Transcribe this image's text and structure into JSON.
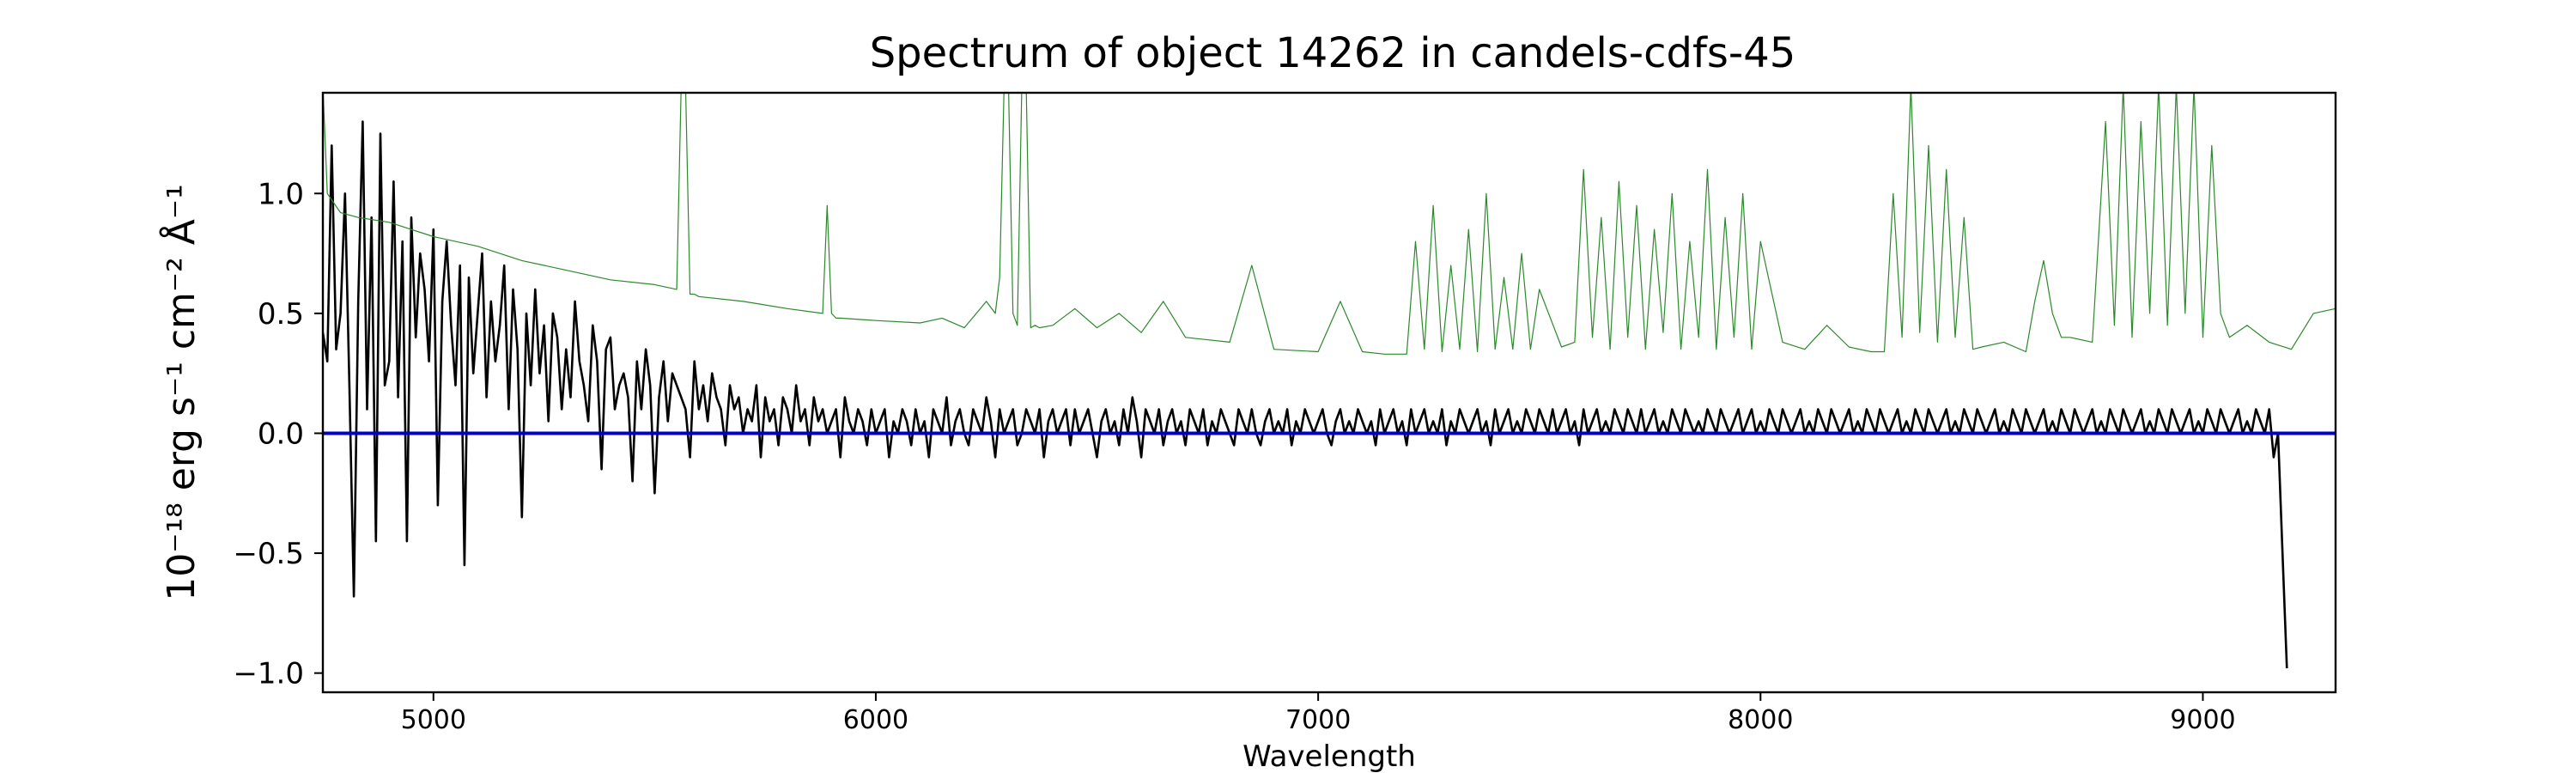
{
  "chart_data": {
    "type": "line",
    "title": "Spectrum of object 14262 in candels-cdfs-45",
    "xlabel": "Wavelength",
    "ylabel": "10⁻¹⁸ erg s⁻¹ cm⁻² Å⁻¹",
    "xlim": [
      4750,
      9300
    ],
    "ylim": [
      -1.08,
      1.42
    ],
    "x_ticks": [
      5000,
      6000,
      7000,
      8000,
      9000
    ],
    "x_tick_labels": [
      "5000",
      "6000",
      "7000",
      "8000",
      "9000"
    ],
    "y_ticks": [
      -1.0,
      -0.5,
      0.0,
      0.5,
      1.0
    ],
    "y_tick_labels": [
      "−1.0",
      "−0.5",
      "0.0",
      "0.5",
      "1.0"
    ],
    "grid": false,
    "legend": "none",
    "series": [
      {
        "role": "flux",
        "color": "#000000",
        "x_start": 4750,
        "x_step": 10,
        "values": [
          0.42,
          0.3,
          1.2,
          0.35,
          0.5,
          1.0,
          0.2,
          -0.68,
          0.55,
          1.3,
          0.1,
          0.9,
          -0.45,
          1.25,
          0.2,
          0.3,
          1.05,
          0.15,
          0.8,
          -0.45,
          0.9,
          0.4,
          0.75,
          0.6,
          0.3,
          0.85,
          -0.3,
          0.55,
          0.8,
          0.45,
          0.2,
          0.7,
          -0.55,
          0.65,
          0.25,
          0.5,
          0.75,
          0.15,
          0.55,
          0.3,
          0.45,
          0.7,
          0.1,
          0.6,
          0.35,
          -0.35,
          0.5,
          0.2,
          0.6,
          0.25,
          0.45,
          0.05,
          0.5,
          0.4,
          0.1,
          0.35,
          0.15,
          0.55,
          0.3,
          0.2,
          0.05,
          0.45,
          0.3,
          -0.15,
          0.35,
          0.4,
          0.1,
          0.2,
          0.25,
          0.15,
          -0.2,
          0.3,
          0.1,
          0.35,
          0.2,
          -0.25,
          0.15,
          0.3,
          0.05,
          0.25,
          0.2,
          0.15,
          0.1,
          -0.1,
          0.3,
          0.1,
          0.2,
          0.05,
          0.25,
          0.15,
          0.1,
          -0.05,
          0.2,
          0.1,
          0.15,
          0.0,
          0.1,
          0.05,
          0.2,
          -0.1,
          0.15,
          0.05,
          0.1,
          -0.05,
          0.15,
          0.1,
          0.0,
          0.2,
          0.05,
          0.1,
          -0.05,
          0.15,
          0.05,
          0.1,
          0.0,
          0.05,
          0.1,
          -0.1,
          0.15,
          0.05,
          0.0,
          0.1,
          0.05,
          -0.05,
          0.1,
          0.0,
          0.05,
          0.1,
          -0.1,
          0.05,
          0.0,
          0.1,
          0.05,
          -0.05,
          0.1,
          0.0,
          0.05,
          -0.1,
          0.1,
          0.05,
          0.0,
          0.15,
          -0.05,
          0.05,
          0.1,
          0.0,
          -0.05,
          0.1,
          0.05,
          0.0,
          0.15,
          0.05,
          -0.1,
          0.1,
          0.0,
          0.05,
          0.1,
          -0.05,
          0.0,
          0.1,
          0.05,
          0.0,
          0.1,
          -0.1,
          0.05,
          0.1,
          0.0,
          0.05,
          0.1,
          -0.05,
          0.1,
          0.0,
          0.05,
          0.1,
          0.0,
          -0.1,
          0.05,
          0.1,
          0.0,
          0.05,
          -0.05,
          0.1,
          0.0,
          0.15,
          0.05,
          -0.1,
          0.1,
          0.05,
          0.0,
          0.1,
          -0.05,
          0.05,
          0.1,
          0.0,
          0.05,
          -0.05,
          0.1,
          0.05,
          0.0,
          0.1,
          -0.05,
          0.05,
          0.0,
          0.1,
          0.05,
          0.0,
          -0.05,
          0.1,
          0.05,
          0.0,
          0.1,
          0.0,
          -0.05,
          0.05,
          0.1,
          0.0,
          0.05,
          0.0,
          0.1,
          -0.05,
          0.05,
          0.0,
          0.1,
          0.05,
          0.0,
          0.05,
          0.1,
          0.0,
          -0.05,
          0.05,
          0.1,
          0.0,
          0.05,
          0.0,
          0.1,
          0.05,
          0.0,
          0.05,
          -0.05,
          0.1,
          0.0,
          0.05,
          0.1,
          0.0,
          0.05,
          -0.05,
          0.1,
          0.0,
          0.05,
          0.1,
          0.0,
          0.05,
          0.0,
          0.1,
          -0.05,
          0.05,
          0.0,
          0.1,
          0.05,
          0.0,
          0.05,
          0.1,
          0.0,
          0.05,
          -0.05,
          0.1,
          0.0,
          0.05,
          0.1,
          0.0,
          0.05,
          0.0,
          0.1,
          0.05,
          0.0,
          0.1,
          0.05,
          0.0,
          0.1,
          0.0,
          0.05,
          0.1,
          0.0,
          0.05,
          -0.05,
          0.1,
          0.0,
          0.05,
          0.1,
          0.0,
          0.05,
          0.0,
          0.1,
          0.05,
          0.0,
          0.1,
          0.05,
          0.0,
          0.1,
          0.0,
          0.05,
          0.1,
          0.0,
          0.05,
          0.0,
          0.1,
          0.05,
          0.0,
          0.1,
          0.05,
          0.0,
          0.05,
          0.0,
          0.1,
          0.05,
          0.0,
          0.1,
          0.05,
          0.0,
          0.05,
          0.1,
          0.0,
          0.05,
          0.1,
          0.0,
          0.05,
          0.0,
          0.1,
          0.05,
          0.0,
          0.1,
          0.05,
          0.0,
          0.05,
          0.1,
          0.0,
          0.05,
          0.0,
          0.1,
          0.05,
          0.0,
          0.1,
          0.05,
          0.0,
          0.05,
          0.1,
          0.0,
          0.05,
          0.0,
          0.1,
          0.05,
          0.0,
          0.1,
          0.05,
          0.0,
          0.05,
          0.1,
          0.0,
          0.05,
          0.0,
          0.1,
          0.05,
          0.0,
          0.1,
          0.05,
          0.0,
          0.05,
          0.1,
          0.0,
          0.05,
          0.0,
          0.1,
          0.05,
          0.0,
          0.1,
          0.05,
          0.0,
          0.05,
          0.1,
          0.0,
          0.05,
          0.0,
          0.1,
          0.05,
          0.0,
          0.1,
          0.05,
          0.0,
          0.05,
          0.1,
          0.0,
          0.05,
          0.0,
          0.1,
          0.05,
          0.0,
          0.1,
          0.05,
          0.0,
          0.05,
          0.1,
          0.0,
          0.05,
          0.0,
          0.1,
          0.05,
          0.0,
          0.1,
          0.05,
          0.0,
          0.05,
          0.1,
          0.0,
          0.05,
          0.0,
          0.1,
          0.05,
          0.0,
          0.1,
          0.05,
          0.0,
          0.05,
          0.1,
          0.0,
          0.05,
          0.0,
          0.1,
          0.05,
          0.0,
          0.1,
          0.05,
          0.0,
          0.05,
          0.1,
          0.0,
          0.05,
          0.0,
          0.1,
          0.05,
          0.0,
          0.1,
          -0.1,
          0.0,
          -0.5,
          -0.98
        ],
        "stroke_width": 2.6
      },
      {
        "role": "error",
        "color": "#2a8a2a",
        "x": [
          4750,
          4760,
          4790,
          4830,
          4900,
          5000,
          5100,
          5200,
          5250,
          5300,
          5350,
          5400,
          5500,
          5550,
          5560,
          5570,
          5580,
          5590,
          5600,
          5700,
          5800,
          5880,
          5890,
          5900,
          5910,
          5920,
          6000,
          6100,
          6150,
          6200,
          6250,
          6270,
          6280,
          6290,
          6300,
          6310,
          6320,
          6330,
          6340,
          6350,
          6360,
          6370,
          6400,
          6450,
          6500,
          6550,
          6600,
          6650,
          6700,
          6800,
          6850,
          6900,
          7000,
          7050,
          7100,
          7150,
          7200,
          7220,
          7240,
          7260,
          7280,
          7300,
          7320,
          7340,
          7360,
          7380,
          7400,
          7420,
          7440,
          7460,
          7480,
          7500,
          7550,
          7580,
          7600,
          7620,
          7640,
          7660,
          7680,
          7700,
          7720,
          7740,
          7760,
          7780,
          7800,
          7820,
          7840,
          7860,
          7880,
          7900,
          7920,
          7940,
          7960,
          7980,
          8000,
          8050,
          8100,
          8150,
          8200,
          8250,
          8280,
          8300,
          8320,
          8340,
          8360,
          8380,
          8400,
          8420,
          8440,
          8460,
          8480,
          8500,
          8550,
          8600,
          8620,
          8640,
          8660,
          8680,
          8700,
          8750,
          8780,
          8800,
          8820,
          8840,
          8860,
          8880,
          8900,
          8920,
          8940,
          8960,
          8980,
          9000,
          9020,
          9040,
          9060,
          9100,
          9150,
          9200,
          9250,
          9300
        ],
        "values": [
          1.45,
          1.0,
          0.92,
          0.9,
          0.88,
          0.82,
          0.78,
          0.72,
          0.7,
          0.68,
          0.66,
          0.64,
          0.62,
          0.6,
          1.45,
          1.45,
          0.58,
          0.58,
          0.57,
          0.55,
          0.52,
          0.5,
          0.95,
          0.5,
          0.48,
          0.48,
          0.47,
          0.46,
          0.48,
          0.44,
          0.55,
          0.5,
          0.65,
          1.45,
          1.45,
          0.5,
          0.45,
          1.45,
          1.45,
          0.44,
          0.45,
          0.44,
          0.45,
          0.52,
          0.44,
          0.5,
          0.42,
          0.55,
          0.4,
          0.38,
          0.7,
          0.35,
          0.34,
          0.55,
          0.34,
          0.33,
          0.33,
          0.8,
          0.35,
          0.95,
          0.34,
          0.7,
          0.35,
          0.85,
          0.34,
          1.0,
          0.35,
          0.65,
          0.35,
          0.75,
          0.35,
          0.6,
          0.36,
          0.38,
          1.1,
          0.4,
          0.9,
          0.35,
          1.05,
          0.4,
          0.95,
          0.35,
          0.85,
          0.42,
          1.0,
          0.35,
          0.8,
          0.4,
          1.1,
          0.35,
          0.9,
          0.4,
          1.0,
          0.35,
          0.8,
          0.38,
          0.35,
          0.45,
          0.36,
          0.34,
          0.34,
          1.0,
          0.4,
          1.45,
          0.42,
          1.2,
          0.38,
          1.1,
          0.4,
          0.9,
          0.35,
          0.36,
          0.38,
          0.34,
          0.55,
          0.72,
          0.5,
          0.4,
          0.4,
          0.38,
          1.3,
          0.45,
          1.45,
          0.4,
          1.3,
          0.5,
          1.45,
          0.45,
          1.45,
          0.5,
          1.45,
          0.4,
          1.2,
          0.5,
          0.4,
          0.45,
          0.38,
          0.35,
          0.5,
          0.52
        ],
        "stroke_width": 1.2
      },
      {
        "role": "model",
        "color": "#0000cc",
        "x": [
          4750,
          9300
        ],
        "values": [
          0.0,
          0.0
        ],
        "stroke_width": 4
      }
    ]
  }
}
